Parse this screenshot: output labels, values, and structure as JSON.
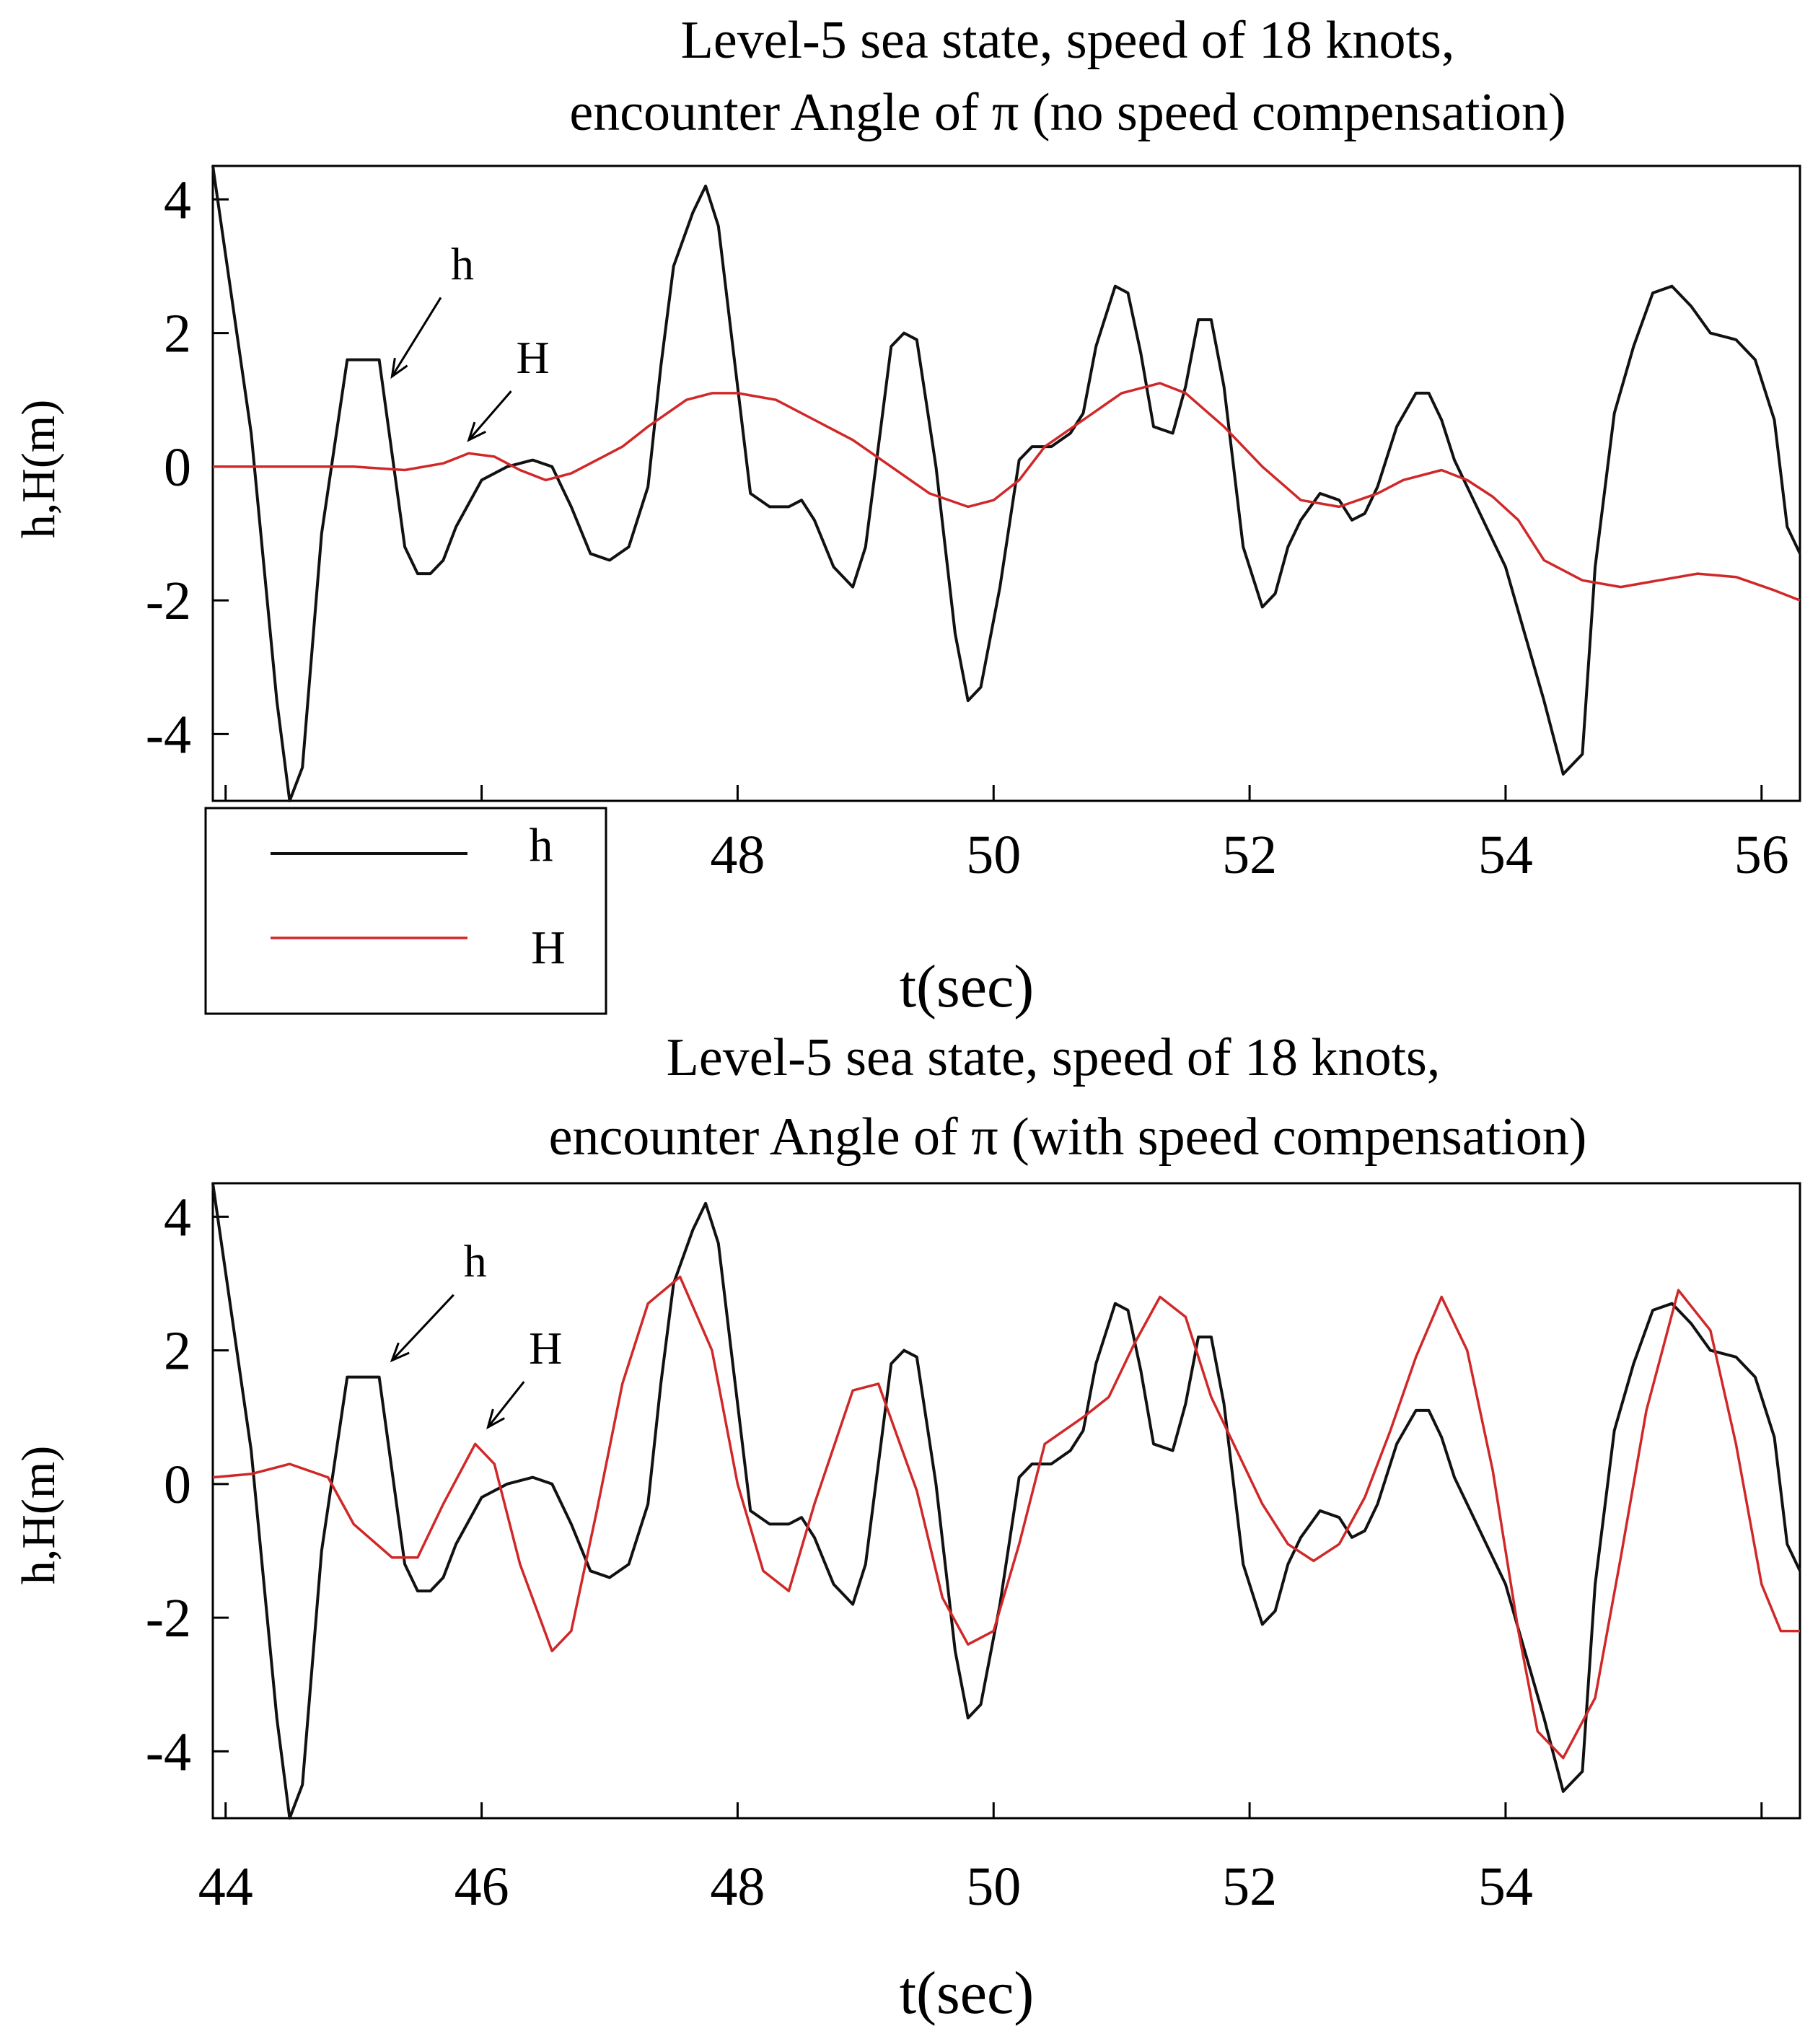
{
  "colors": {
    "h": "#111111",
    "H": "#d02828"
  },
  "legend": {
    "h_label": "h",
    "H_label": "H"
  },
  "chart_data": [
    {
      "type": "line",
      "title_line1": "Level-5 sea state, speed of 18 knots,",
      "title_line2": "encounter Angle of π  (no speed compensation)",
      "xlabel": "t(sec)",
      "ylabel": "h,H(m)",
      "xlim": [
        43.9,
        56.3
      ],
      "ylim": [
        -5,
        4.5
      ],
      "x_ticks": [
        48,
        50,
        52,
        54,
        56
      ],
      "x_minor": [
        44,
        46
      ],
      "y_ticks": [
        4,
        2,
        0,
        -2,
        -4
      ],
      "y_tick_labels": [
        "4",
        "2",
        "0",
        "-2",
        "-4"
      ],
      "annotations": [
        {
          "text": "h",
          "x": 45.85,
          "y": 2.8,
          "tx": 45.3,
          "ty": 1.35
        },
        {
          "text": "H",
          "x": 46.4,
          "y": 1.4,
          "tx": 45.9,
          "ty": 0.4
        }
      ],
      "series": [
        {
          "name": "h",
          "x": [
            43.9,
            44.05,
            44.2,
            44.4,
            44.5,
            44.6,
            44.75,
            44.95,
            45.2,
            45.4,
            45.5,
            45.6,
            45.7,
            45.8,
            46.0,
            46.2,
            46.4,
            46.55,
            46.7,
            46.85,
            47.0,
            47.15,
            47.3,
            47.4,
            47.5,
            47.65,
            47.75,
            47.85,
            47.95,
            48.1,
            48.25,
            48.4,
            48.5,
            48.6,
            48.75,
            48.9,
            49.0,
            49.2,
            49.3,
            49.4,
            49.55,
            49.7,
            49.8,
            49.9,
            50.05,
            50.2,
            50.3,
            50.45,
            50.6,
            50.7,
            50.8,
            50.95,
            51.05,
            51.15,
            51.25,
            51.4,
            51.5,
            51.6,
            51.7,
            51.8,
            51.95,
            52.1,
            52.2,
            52.3,
            52.4,
            52.55,
            52.7,
            52.8,
            52.9,
            53.0,
            53.15,
            53.3,
            53.4,
            53.5,
            53.6,
            53.7,
            53.85,
            54.0,
            54.15,
            54.3,
            54.45,
            54.6,
            54.7,
            54.85,
            55.0,
            55.15,
            55.3,
            55.45,
            55.6,
            55.8,
            55.95,
            56.1,
            56.2,
            56.3
          ],
          "y": [
            4.5,
            2.5,
            0.5,
            -3.5,
            -5,
            -4.5,
            -1.0,
            1.6,
            1.6,
            -1.2,
            -1.6,
            -1.6,
            -1.4,
            -0.9,
            -0.2,
            0.0,
            0.1,
            0.0,
            -0.6,
            -1.3,
            -1.4,
            -1.2,
            -0.3,
            1.5,
            3.0,
            3.8,
            4.2,
            3.6,
            2.0,
            -0.4,
            -0.6,
            -0.6,
            -0.5,
            -0.8,
            -1.5,
            -1.8,
            -1.2,
            1.8,
            2.0,
            1.9,
            0.0,
            -2.5,
            -3.5,
            -3.3,
            -1.8,
            0.1,
            0.3,
            0.3,
            0.5,
            0.8,
            1.8,
            2.7,
            2.6,
            1.7,
            0.6,
            0.5,
            1.2,
            2.2,
            2.2,
            1.2,
            -1.2,
            -2.1,
            -1.9,
            -1.2,
            -0.8,
            -0.4,
            -0.5,
            -0.8,
            -0.7,
            -0.3,
            0.6,
            1.1,
            1.1,
            0.7,
            0.1,
            -0.3,
            -0.9,
            -1.5,
            -2.5,
            -3.5,
            -4.6,
            -4.3,
            -1.5,
            0.8,
            1.8,
            2.6,
            2.7,
            2.4,
            2.0,
            1.9,
            1.6,
            0.7,
            -0.9,
            -1.3
          ]
        },
        {
          "name": "H",
          "x": [
            43.9,
            44.5,
            45.0,
            45.4,
            45.7,
            45.9,
            46.1,
            46.3,
            46.5,
            46.7,
            46.9,
            47.1,
            47.3,
            47.6,
            47.8,
            48.0,
            48.3,
            48.6,
            48.9,
            49.2,
            49.5,
            49.8,
            50.0,
            50.2,
            50.4,
            50.7,
            51.0,
            51.3,
            51.5,
            51.8,
            52.1,
            52.4,
            52.7,
            53.0,
            53.2,
            53.5,
            53.7,
            53.9,
            54.1,
            54.3,
            54.6,
            54.9,
            55.2,
            55.5,
            55.8,
            56.1,
            56.3
          ],
          "y": [
            0.0,
            0.0,
            0.0,
            -0.05,
            0.05,
            0.2,
            0.15,
            -0.05,
            -0.2,
            -0.1,
            0.1,
            0.3,
            0.6,
            1.0,
            1.1,
            1.1,
            1.0,
            0.7,
            0.4,
            0.0,
            -0.4,
            -0.6,
            -0.5,
            -0.2,
            0.3,
            0.7,
            1.1,
            1.25,
            1.1,
            0.6,
            0.0,
            -0.5,
            -0.6,
            -0.4,
            -0.2,
            -0.05,
            -0.2,
            -0.45,
            -0.8,
            -1.4,
            -1.7,
            -1.8,
            -1.7,
            -1.6,
            -1.65,
            -1.85,
            -2.0
          ]
        }
      ]
    },
    {
      "type": "line",
      "title_line1": "Level-5 sea state, speed of 18 knots,",
      "title_line2": "encounter Angle of π (with speed compensation)",
      "xlabel": "t(sec)",
      "ylabel": "h,H(m)",
      "xlim": [
        43.9,
        56.3
      ],
      "ylim": [
        -5,
        4.5
      ],
      "x_ticks": [
        44,
        46,
        48,
        50,
        52,
        54
      ],
      "x_minor": [
        56
      ],
      "y_ticks": [
        4,
        2,
        0,
        -2,
        -4
      ],
      "y_tick_labels": [
        "4",
        "2",
        "0",
        "-2",
        "-4"
      ],
      "annotations": [
        {
          "text": "h",
          "x": 45.95,
          "y": 3.1,
          "tx": 45.3,
          "ty": 1.85
        },
        {
          "text": "H",
          "x": 46.5,
          "y": 1.8,
          "tx": 46.05,
          "ty": 0.85
        }
      ],
      "series": [
        {
          "name": "h",
          "x": [
            43.9,
            44.05,
            44.2,
            44.4,
            44.5,
            44.6,
            44.75,
            44.95,
            45.2,
            45.4,
            45.5,
            45.6,
            45.7,
            45.8,
            46.0,
            46.2,
            46.4,
            46.55,
            46.7,
            46.85,
            47.0,
            47.15,
            47.3,
            47.4,
            47.5,
            47.65,
            47.75,
            47.85,
            47.95,
            48.1,
            48.25,
            48.4,
            48.5,
            48.6,
            48.75,
            48.9,
            49.0,
            49.2,
            49.3,
            49.4,
            49.55,
            49.7,
            49.8,
            49.9,
            50.05,
            50.2,
            50.3,
            50.45,
            50.6,
            50.7,
            50.8,
            50.95,
            51.05,
            51.15,
            51.25,
            51.4,
            51.5,
            51.6,
            51.7,
            51.8,
            51.95,
            52.1,
            52.2,
            52.3,
            52.4,
            52.55,
            52.7,
            52.8,
            52.9,
            53.0,
            53.15,
            53.3,
            53.4,
            53.5,
            53.6,
            53.7,
            53.85,
            54.0,
            54.15,
            54.3,
            54.45,
            54.6,
            54.7,
            54.85,
            55.0,
            55.15,
            55.3,
            55.45,
            55.6,
            55.8,
            55.95,
            56.1,
            56.2,
            56.3
          ],
          "y": [
            4.5,
            2.5,
            0.5,
            -3.5,
            -5,
            -4.5,
            -1.0,
            1.6,
            1.6,
            -1.2,
            -1.6,
            -1.6,
            -1.4,
            -0.9,
            -0.2,
            0.0,
            0.1,
            0.0,
            -0.6,
            -1.3,
            -1.4,
            -1.2,
            -0.3,
            1.5,
            3.0,
            3.8,
            4.2,
            3.6,
            2.0,
            -0.4,
            -0.6,
            -0.6,
            -0.5,
            -0.8,
            -1.5,
            -1.8,
            -1.2,
            1.8,
            2.0,
            1.9,
            0.0,
            -2.5,
            -3.5,
            -3.3,
            -1.8,
            0.1,
            0.3,
            0.3,
            0.5,
            0.8,
            1.8,
            2.7,
            2.6,
            1.7,
            0.6,
            0.5,
            1.2,
            2.2,
            2.2,
            1.2,
            -1.2,
            -2.1,
            -1.9,
            -1.2,
            -0.8,
            -0.4,
            -0.5,
            -0.8,
            -0.7,
            -0.3,
            0.6,
            1.1,
            1.1,
            0.7,
            0.1,
            -0.3,
            -0.9,
            -1.5,
            -2.5,
            -3.5,
            -4.6,
            -4.3,
            -1.5,
            0.8,
            1.8,
            2.6,
            2.7,
            2.4,
            2.0,
            1.9,
            1.6,
            0.7,
            -0.9,
            -1.3
          ]
        },
        {
          "name": "H",
          "x": [
            43.9,
            44.2,
            44.5,
            44.8,
            45.0,
            45.3,
            45.5,
            45.7,
            45.95,
            46.1,
            46.3,
            46.55,
            46.7,
            46.9,
            47.1,
            47.3,
            47.55,
            47.8,
            48.0,
            48.2,
            48.4,
            48.6,
            48.9,
            49.1,
            49.4,
            49.6,
            49.8,
            50.0,
            50.2,
            50.4,
            50.7,
            50.9,
            51.1,
            51.3,
            51.5,
            51.7,
            51.9,
            52.1,
            52.3,
            52.5,
            52.7,
            52.9,
            53.1,
            53.3,
            53.5,
            53.7,
            53.9,
            54.1,
            54.25,
            54.45,
            54.7,
            54.9,
            55.1,
            55.35,
            55.6,
            55.8,
            56.0,
            56.15,
            56.3
          ],
          "y": [
            0.1,
            0.15,
            0.3,
            0.1,
            -0.6,
            -1.1,
            -1.1,
            -0.3,
            0.6,
            0.3,
            -1.2,
            -2.5,
            -2.2,
            -0.4,
            1.5,
            2.7,
            3.1,
            2.0,
            0.0,
            -1.3,
            -1.6,
            -0.3,
            1.4,
            1.5,
            -0.1,
            -1.7,
            -2.4,
            -2.2,
            -0.9,
            0.6,
            1.0,
            1.3,
            2.1,
            2.8,
            2.5,
            1.3,
            0.5,
            -0.3,
            -0.9,
            -1.15,
            -0.9,
            -0.2,
            0.8,
            1.9,
            2.8,
            2.0,
            0.2,
            -2.2,
            -3.7,
            -4.1,
            -3.2,
            -1.1,
            1.1,
            2.9,
            2.3,
            0.6,
            -1.5,
            -2.2,
            -2.2
          ]
        }
      ]
    }
  ]
}
